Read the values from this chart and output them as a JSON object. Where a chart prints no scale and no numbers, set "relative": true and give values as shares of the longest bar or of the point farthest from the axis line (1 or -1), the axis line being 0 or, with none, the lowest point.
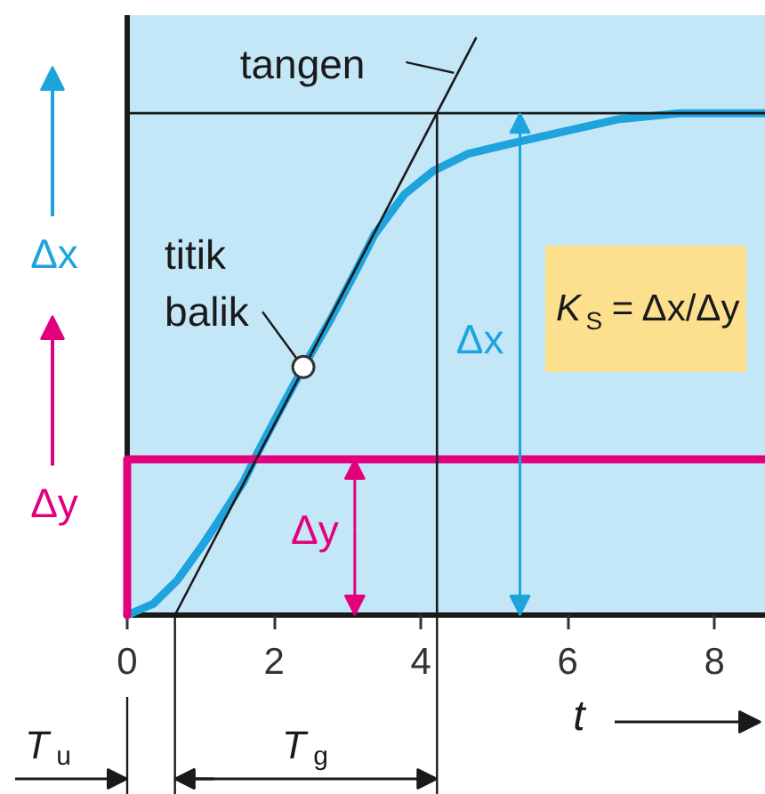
{
  "chart_data": {
    "type": "line",
    "relative": true,
    "xlim": [
      0,
      8.7
    ],
    "xticks": [
      0,
      2,
      4,
      6,
      8
    ],
    "xlabel": "t",
    "legend": "left",
    "series": [
      {
        "name": "Δx",
        "color": "#1ea3dd",
        "x": [
          0,
          0.36,
          0.68,
          1.02,
          1.28,
          1.58,
          1.77,
          2.06,
          2.4,
          2.76,
          3.13,
          3.37,
          3.78,
          4.17,
          4.65,
          5.31,
          6.71,
          7.54,
          8.7
        ],
        "values": [
          0,
          0.02,
          0.06,
          0.12,
          0.17,
          0.23,
          0.28,
          0.35,
          0.43,
          0.51,
          0.6,
          0.66,
          0.73,
          0.77,
          0.8,
          0.82,
          0.86,
          0.87,
          0.87
        ]
      },
      {
        "name": "Δy",
        "color": "#e3007d",
        "x": [
          0,
          0,
          8.7
        ],
        "values": [
          0,
          0.27,
          0.27
        ]
      },
      {
        "color": "#1a1a1a",
        "x": [
          0.65,
          4.75
        ],
        "values": [
          0,
          1
        ]
      }
    ],
    "ref_lines": [
      {
        "axis": "y",
        "value": 0.87,
        "color": "#1a1a1a"
      },
      {
        "axis": "x",
        "value": 4.22,
        "color": "#1a1a1a"
      }
    ],
    "annotations": [
      {
        "text": "tangen",
        "x": 4.5,
        "y": 0.94
      },
      {
        "text": "titik balik",
        "x": 2.4,
        "y": 0.43
      },
      {
        "text": "Δx",
        "x": 5.35,
        "y": 0.87
      },
      {
        "text": "Δy",
        "x": 3.1,
        "y": 0.27
      },
      "K$_{S}$ = Δx/Δy",
      "T$_{u}$",
      "T$_{g}$"
    ]
  }
}
